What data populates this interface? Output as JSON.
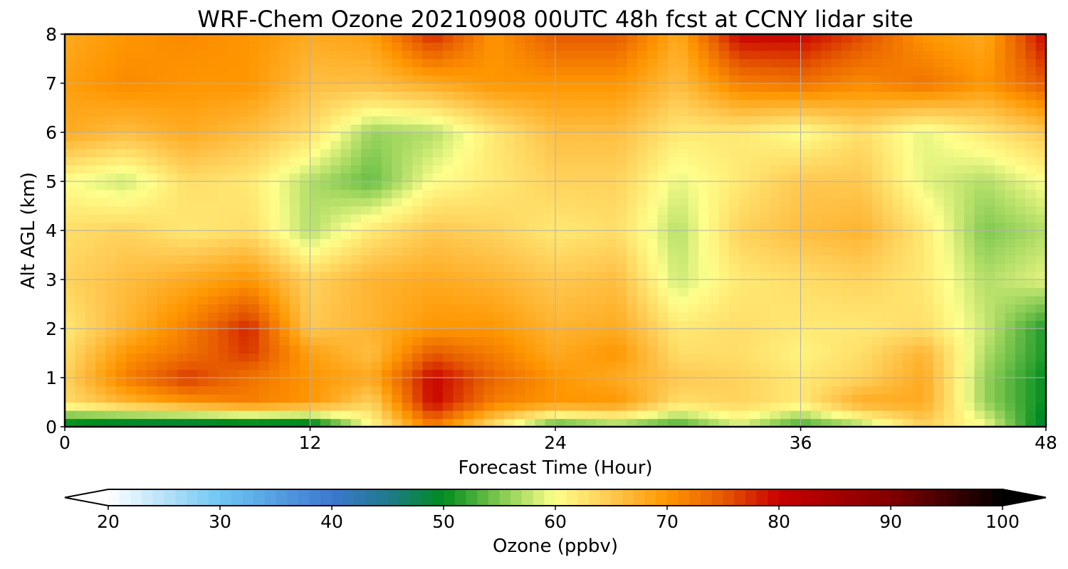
{
  "chart_data": {
    "type": "heatmap",
    "title": "WRF-Chem Ozone  20210908 00UTC 48h fcst at CCNY lidar site",
    "xlabel": "Forecast Time (Hour)",
    "ylabel": "Alt AGL (km)",
    "xlim": [
      0,
      48
    ],
    "ylim": [
      0,
      8
    ],
    "x_ticks": [
      0,
      12,
      24,
      36,
      48
    ],
    "y_ticks": [
      0,
      1,
      2,
      3,
      4,
      5,
      6,
      7,
      8
    ],
    "grid": true,
    "colorbar": {
      "label": "Ozone  (ppbv)",
      "range": [
        20,
        100
      ],
      "ticks": [
        20,
        30,
        40,
        50,
        60,
        70,
        80,
        90,
        100
      ],
      "extend": "both",
      "orientation": "horizontal",
      "stops": [
        {
          "value": 20,
          "color": "#ffffff"
        },
        {
          "value": 30,
          "color": "#6ec6f2"
        },
        {
          "value": 40,
          "color": "#3c78d0"
        },
        {
          "value": 45,
          "color": "#1f7a8c"
        },
        {
          "value": 50,
          "color": "#008c1e"
        },
        {
          "value": 55,
          "color": "#7fc850"
        },
        {
          "value": 60,
          "color": "#ffff8c"
        },
        {
          "value": 65,
          "color": "#ffc850"
        },
        {
          "value": 70,
          "color": "#ff9600"
        },
        {
          "value": 75,
          "color": "#e65a00"
        },
        {
          "value": 80,
          "color": "#c80000"
        },
        {
          "value": 90,
          "color": "#820000"
        },
        {
          "value": 100,
          "color": "#000000"
        }
      ]
    },
    "x": [
      0,
      3,
      6,
      9,
      12,
      15,
      18,
      21,
      24,
      27,
      30,
      33,
      36,
      39,
      42,
      45,
      48
    ],
    "y": [
      0,
      0.5,
      1,
      1.5,
      2,
      3,
      4,
      5,
      6,
      7,
      8
    ],
    "z": [
      [
        48,
        46,
        45,
        46,
        46,
        60,
        72,
        62,
        52,
        55,
        52,
        58,
        52,
        56,
        64,
        60,
        48
      ],
      [
        63,
        67,
        70,
        72,
        70,
        64,
        80,
        72,
        70,
        70,
        63,
        64,
        62,
        68,
        68,
        56,
        50
      ],
      [
        64,
        72,
        77,
        73,
        70,
        68,
        80,
        74,
        70,
        68,
        65,
        64,
        62,
        64,
        68,
        56,
        50
      ],
      [
        63,
        70,
        73,
        77,
        69,
        66,
        75,
        72,
        68,
        70,
        63,
        63,
        61,
        63,
        67,
        57,
        51
      ],
      [
        62,
        67,
        72,
        78,
        65,
        67,
        70,
        70,
        67,
        68,
        62,
        63,
        62,
        62,
        63,
        58,
        51
      ],
      [
        64,
        66,
        68,
        70,
        64,
        67,
        68,
        67,
        65,
        66,
        58,
        62,
        63,
        64,
        62,
        57,
        59
      ],
      [
        63,
        64,
        62,
        63,
        57,
        62,
        65,
        64,
        62,
        63,
        57,
        64,
        66,
        67,
        62,
        55,
        57
      ],
      [
        60,
        58,
        63,
        62,
        57,
        54,
        60,
        62,
        64,
        64,
        59,
        62,
        65,
        65,
        59,
        57,
        60
      ],
      [
        68,
        66,
        68,
        66,
        63,
        56,
        57,
        62,
        66,
        66,
        62,
        62,
        60,
        63,
        59,
        62,
        65
      ],
      [
        69,
        71,
        70,
        70,
        66,
        66,
        68,
        70,
        70,
        70,
        66,
        72,
        73,
        71,
        73,
        70,
        75
      ],
      [
        68,
        70,
        71,
        70,
        68,
        69,
        78,
        70,
        75,
        75,
        68,
        80,
        80,
        76,
        70,
        68,
        80
      ]
    ]
  }
}
